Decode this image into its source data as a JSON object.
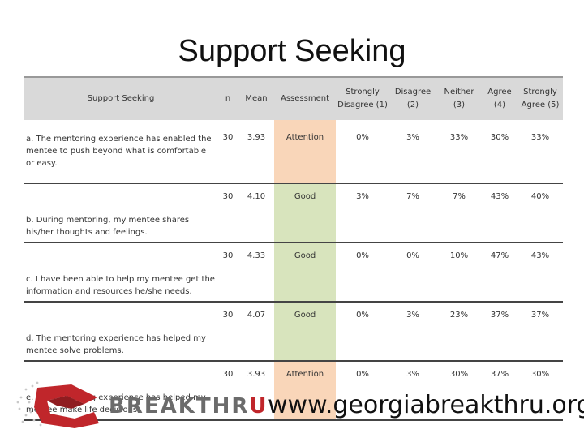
{
  "title": "Support Seeking",
  "table": {
    "headers": {
      "question": "Support Seeking",
      "n": "n",
      "mean": "Mean",
      "assessment": "Assessment",
      "sd": "Strongly Disagree (1)",
      "d": "Disagree (2)",
      "ne": "Neither (3)",
      "a": "Agree (4)",
      "sa": "Strongly Agree (5)"
    },
    "rows": [
      {
        "question": "a. The mentoring experience has enabled the mentee to push beyond what is comfortable or easy.",
        "n": "30",
        "mean": "3.93",
        "assessment": "Attention",
        "sd": "0%",
        "d": "3%",
        "ne": "33%",
        "a": "30%",
        "sa": "33%"
      },
      {
        "question": "b. During mentoring, my mentee shares his/her thoughts and feelings.",
        "n": "30",
        "mean": "4.10",
        "assessment": "Good",
        "sd": "3%",
        "d": "7%",
        "ne": "7%",
        "a": "43%",
        "sa": "40%"
      },
      {
        "question": "c. I have been able to help my mentee get the information and resources he/she needs.",
        "n": "30",
        "mean": "4.33",
        "assessment": "Good",
        "sd": "0%",
        "d": "0%",
        "ne": "10%",
        "a": "47%",
        "sa": "43%"
      },
      {
        "question": "d. The mentoring experience has helped my mentee solve problems.",
        "n": "30",
        "mean": "4.07",
        "assessment": "Good",
        "sd": "0%",
        "d": "3%",
        "ne": "23%",
        "a": "37%",
        "sa": "37%"
      },
      {
        "question": "e. The mentoring experience has helped my mentee make life decisions.",
        "n": "30",
        "mean": "3.93",
        "assessment": "Attention",
        "sd": "0%",
        "d": "3%",
        "ne": "30%",
        "a": "37%",
        "sa": "30%"
      }
    ]
  },
  "colors": {
    "attention": "#f9d6b9",
    "good": "#d8e4bd",
    "header": "#d9d9d9",
    "brand_red": "#c0262b"
  },
  "footer": {
    "logo_text": "BREAKTHR",
    "logo_text_end": "U",
    "logo_icon": "breakthru-logo-icon",
    "website": "www.georgiabreakthru.org"
  }
}
